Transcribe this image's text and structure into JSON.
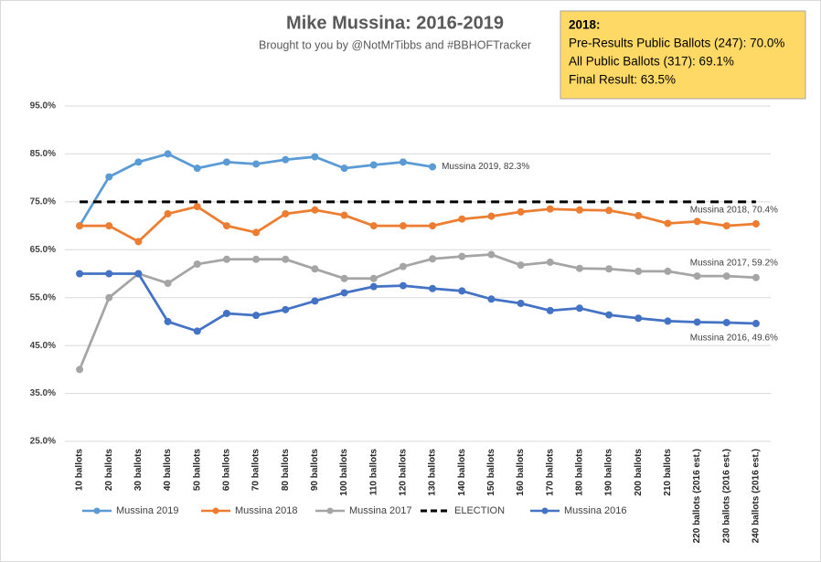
{
  "chart_data": {
    "type": "line",
    "title": "Mike Mussina: 2016-2019",
    "subtitle": "Brought to you by @NotMrTibbs and #BBHOFTracker",
    "info_box": {
      "heading": "2018:",
      "lines": [
        "Pre-Results Public Ballots (247): 70.0%",
        "All Public Ballots (317): 69.1%",
        "Final Result: 63.5%"
      ]
    },
    "categories": [
      "10 ballots",
      "20 ballots",
      "30 ballots",
      "40 ballots",
      "50 ballots",
      "60 ballots",
      "70 ballots",
      "80 ballots",
      "90 ballots",
      "100 ballots",
      "110 ballots",
      "120 ballots",
      "130 ballots",
      "140 ballots",
      "150 ballots",
      "160 ballots",
      "170 ballots",
      "180 ballots",
      "190 ballots",
      "200 ballots",
      "210 ballots",
      "220 ballots (2016 est.)",
      "230 ballots (2016 est.)",
      "240 ballots (2016 est.)"
    ],
    "series": [
      {
        "name": "Mussina 2019",
        "color": "#5b9bd5",
        "markers": true,
        "end_label": "Mussina 2019, 82.3%",
        "values": [
          70,
          80.2,
          83.3,
          85,
          82,
          83.3,
          82.9,
          83.8,
          84.4,
          82,
          82.7,
          83.3,
          82.3,
          null,
          null,
          null,
          null,
          null,
          null,
          null,
          null,
          null,
          null,
          null
        ]
      },
      {
        "name": "Mussina 2018",
        "color": "#ed7d31",
        "markers": true,
        "end_label": "Mussina 2018, 70.4%",
        "values": [
          70,
          70,
          66.7,
          72.5,
          74,
          70,
          68.6,
          72.5,
          73.3,
          72.2,
          70,
          70,
          70,
          71.4,
          72,
          72.9,
          73.5,
          73.3,
          73.2,
          72.1,
          70.5,
          70.9,
          70,
          70.4
        ]
      },
      {
        "name": "Mussina 2017",
        "color": "#a5a5a5",
        "markers": true,
        "end_label": "Mussina 2017, 59.2%",
        "values": [
          40,
          55,
          60,
          58,
          62,
          63,
          63,
          63,
          61,
          59,
          59,
          61.5,
          63.1,
          63.6,
          64,
          61.8,
          62.4,
          61.1,
          61,
          60.5,
          60.5,
          59.5,
          59.5,
          59.2
        ]
      },
      {
        "name": "ELECTION",
        "color": "#000000",
        "markers": false,
        "dashed": true,
        "values": [
          75,
          75,
          75,
          75,
          75,
          75,
          75,
          75,
          75,
          75,
          75,
          75,
          75,
          75,
          75,
          75,
          75,
          75,
          75,
          75,
          75,
          75,
          75,
          75
        ]
      },
      {
        "name": "Mussina 2016",
        "color": "#4472c4",
        "markers": true,
        "end_label": "Mussina 2016, 49.6%",
        "values": [
          60,
          60,
          60,
          50,
          48,
          51.7,
          51.3,
          52.5,
          54.3,
          56,
          57.3,
          57.5,
          56.9,
          56.4,
          54.7,
          53.8,
          52.3,
          52.8,
          51.4,
          50.7,
          50.1,
          49.9,
          49.8,
          49.6
        ]
      }
    ],
    "ylim": [
      25,
      95
    ],
    "yticks": [
      {
        "value": 25,
        "label": "25.0%"
      },
      {
        "value": 35,
        "label": "35.0%"
      },
      {
        "value": 45,
        "label": "45.0%"
      },
      {
        "value": 55,
        "label": "55.0%"
      },
      {
        "value": 65,
        "label": "65.0%"
      },
      {
        "value": 75,
        "label": "75.0%"
      },
      {
        "value": 85,
        "label": "85.0%"
      },
      {
        "value": 95,
        "label": "95.0%"
      }
    ],
    "grid": true,
    "legend": "bottom"
  }
}
